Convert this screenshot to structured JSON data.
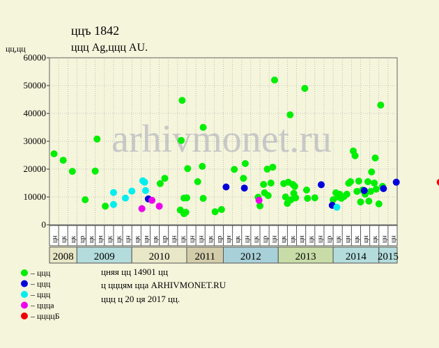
{
  "header": {
    "title": "ццъ 1842",
    "subtitle": "ццц Ag,ццц AU."
  },
  "watermark": "arhivmonet.ru",
  "colors": {
    "background": "#f5f5dc",
    "plot_background": "#f5f5dc",
    "grid": "#999999",
    "watermark": "#c8c8c8",
    "year_bands": [
      "#e8e8c8",
      "#b4dcdc",
      "#e8e8c8",
      "#d2ccaa",
      "#a8d0d8",
      "#c8dca8",
      "#b4dcdc",
      "#b4dcdc"
    ]
  },
  "legend": [
    {
      "label": "– ццц",
      "color": "#00ee00"
    },
    {
      "label": "– ццц",
      "color": "#0000dd"
    },
    {
      "label": "– ццц",
      "color": "#00eeee"
    },
    {
      "label": "– цццa",
      "color": "#ee00ee"
    },
    {
      "label": "– ццццБ",
      "color": "#ee0000"
    }
  ],
  "info": {
    "line1": "цняя цц 14901 цц",
    "line2": "ц цццям цца ARHIVMONET.RU",
    "line3": "ццц ц 20 ця 2017 цц."
  },
  "chart_data": {
    "type": "scatter",
    "title": "ццъ 1842",
    "ylabel": "цц,цц",
    "ylim": [
      0,
      60000
    ],
    "yticks": [
      0,
      10000,
      20000,
      30000,
      40000,
      50000,
      60000
    ],
    "grid": true,
    "legend_position": "bottom-left",
    "x_columns": [
      "цн",
      "цк",
      "цк",
      "цр",
      "цк",
      "цн",
      "цк",
      "цк",
      "цн",
      "цк",
      "цн",
      "цк",
      "цр",
      "цн",
      "цк",
      "цн",
      "цн",
      "цк",
      "цр",
      "цн",
      "цк",
      "цн",
      "цк",
      "цр",
      "цн",
      "цк",
      "цк",
      "цн",
      "цк",
      "цн",
      "цр",
      "цк",
      "цн",
      "цк",
      "цн",
      "цк",
      "цн",
      "цн"
    ],
    "years": [
      {
        "label": "2008",
        "from": 0,
        "to": 3
      },
      {
        "label": "2009",
        "from": 3,
        "to": 9
      },
      {
        "label": "2010",
        "from": 9,
        "to": 15
      },
      {
        "label": "2011",
        "from": 15,
        "to": 19
      },
      {
        "label": "2012",
        "from": 19,
        "to": 25
      },
      {
        "label": "2013",
        "from": 25,
        "to": 31
      },
      {
        "label": "2014",
        "from": 31,
        "to": 36
      },
      {
        "label": "2015",
        "from": 36,
        "to": 38
      }
    ],
    "series": [
      {
        "color": "#00ee00",
        "points": [
          [
            0.5,
            25500
          ],
          [
            1.5,
            23200
          ],
          [
            2.5,
            19200
          ],
          [
            3.9,
            9000
          ],
          [
            5.0,
            19300
          ],
          [
            5.2,
            30800
          ],
          [
            6.1,
            6700
          ],
          [
            12.1,
            14800
          ],
          [
            12.6,
            16700
          ],
          [
            14.3,
            5300
          ],
          [
            14.4,
            30300
          ],
          [
            14.5,
            44700
          ],
          [
            14.7,
            9600
          ],
          [
            14.7,
            4000
          ],
          [
            14.9,
            4500
          ],
          [
            15.0,
            9700
          ],
          [
            15.1,
            20200
          ],
          [
            16.2,
            15500
          ],
          [
            16.8,
            35000
          ],
          [
            16.7,
            21000
          ],
          [
            16.8,
            9500
          ],
          [
            18.1,
            4700
          ],
          [
            18.8,
            5500
          ],
          [
            20.2,
            19900
          ],
          [
            21.2,
            16700
          ],
          [
            21.4,
            22000
          ],
          [
            22.8,
            9900
          ],
          [
            23.0,
            6800
          ],
          [
            23.4,
            14500
          ],
          [
            23.5,
            11500
          ],
          [
            23.8,
            20000
          ],
          [
            23.9,
            10500
          ],
          [
            24.2,
            15000
          ],
          [
            24.4,
            20700
          ],
          [
            24.6,
            52000
          ],
          [
            25.6,
            14800
          ],
          [
            25.8,
            10000
          ],
          [
            26.0,
            7700
          ],
          [
            26.1,
            15300
          ],
          [
            26.3,
            39500
          ],
          [
            26.4,
            9000
          ],
          [
            26.6,
            14500
          ],
          [
            26.7,
            11300
          ],
          [
            26.8,
            13800
          ],
          [
            26.9,
            9700
          ],
          [
            27.9,
            49000
          ],
          [
            28.1,
            12500
          ],
          [
            28.2,
            9500
          ],
          [
            29.0,
            9700
          ],
          [
            31.0,
            9000
          ],
          [
            31.3,
            11500
          ],
          [
            31.5,
            10000
          ],
          [
            31.7,
            11000
          ],
          [
            31.9,
            9500
          ],
          [
            32.2,
            10200
          ],
          [
            32.5,
            11000
          ],
          [
            32.7,
            14900
          ],
          [
            32.9,
            15500
          ],
          [
            33.2,
            26500
          ],
          [
            33.4,
            24800
          ],
          [
            33.6,
            12000
          ],
          [
            33.8,
            15700
          ],
          [
            34.0,
            8200
          ],
          [
            34.2,
            12500
          ],
          [
            34.5,
            11000
          ],
          [
            34.8,
            15500
          ],
          [
            34.9,
            8500
          ],
          [
            35.1,
            12000
          ],
          [
            35.2,
            19000
          ],
          [
            35.5,
            15000
          ],
          [
            35.6,
            24000
          ],
          [
            35.7,
            12800
          ],
          [
            36.0,
            7500
          ],
          [
            36.2,
            43000
          ],
          [
            36.4,
            13800
          ]
        ]
      },
      {
        "color": "#0000dd",
        "points": [
          [
            10.8,
            9300
          ],
          [
            19.3,
            13600
          ],
          [
            21.3,
            13200
          ],
          [
            29.7,
            14400
          ],
          [
            30.9,
            7000
          ],
          [
            34.4,
            12300
          ],
          [
            36.5,
            13000
          ],
          [
            37.9,
            15300
          ]
        ]
      },
      {
        "color": "#00eeee",
        "points": [
          [
            7.0,
            7300
          ],
          [
            7.0,
            11600
          ],
          [
            8.3,
            9600
          ],
          [
            9.0,
            12100
          ],
          [
            10.2,
            15800
          ],
          [
            10.4,
            15300
          ],
          [
            10.5,
            12300
          ],
          [
            31.4,
            6300
          ]
        ]
      },
      {
        "color": "#ee00ee",
        "points": [
          [
            10.1,
            5800
          ],
          [
            11.2,
            8800
          ],
          [
            12.0,
            6700
          ],
          [
            22.9,
            8800
          ]
        ]
      },
      {
        "color": "#ee0000",
        "points": [
          [
            42.7,
            15300
          ]
        ]
      }
    ]
  }
}
